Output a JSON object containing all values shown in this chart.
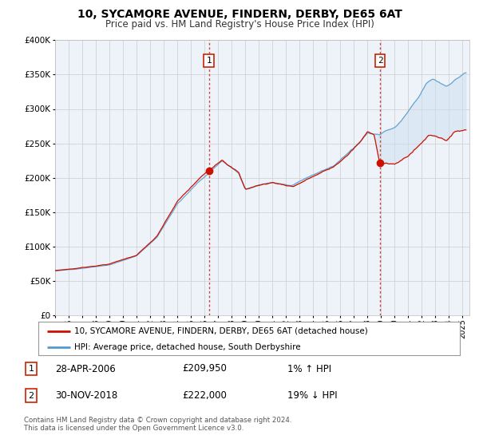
{
  "title": "10, SYCAMORE AVENUE, FINDERN, DERBY, DE65 6AT",
  "subtitle": "Price paid vs. HM Land Registry's House Price Index (HPI)",
  "bg_color": "#ffffff",
  "plot_bg_color": "#eef3fa",
  "hpi_color": "#5599cc",
  "price_color": "#cc1100",
  "marker1_x": 2006.32,
  "marker1_y": 209950,
  "marker2_x": 2018.92,
  "marker2_y": 222000,
  "vline1_x": 2006.32,
  "vline2_x": 2018.92,
  "ylim": [
    0,
    400000
  ],
  "xlim_start": 1995,
  "xlim_end": 2025.5,
  "legend_label1": "10, SYCAMORE AVENUE, FINDERN, DERBY, DE65 6AT (detached house)",
  "legend_label2": "HPI: Average price, detached house, South Derbyshire",
  "note1_date": "28-APR-2006",
  "note1_price": "£209,950",
  "note1_hpi": "1% ↑ HPI",
  "note2_date": "30-NOV-2018",
  "note2_price": "£222,000",
  "note2_hpi": "19% ↓ HPI",
  "footer": "Contains HM Land Registry data © Crown copyright and database right 2024.\nThis data is licensed under the Open Government Licence v3.0."
}
